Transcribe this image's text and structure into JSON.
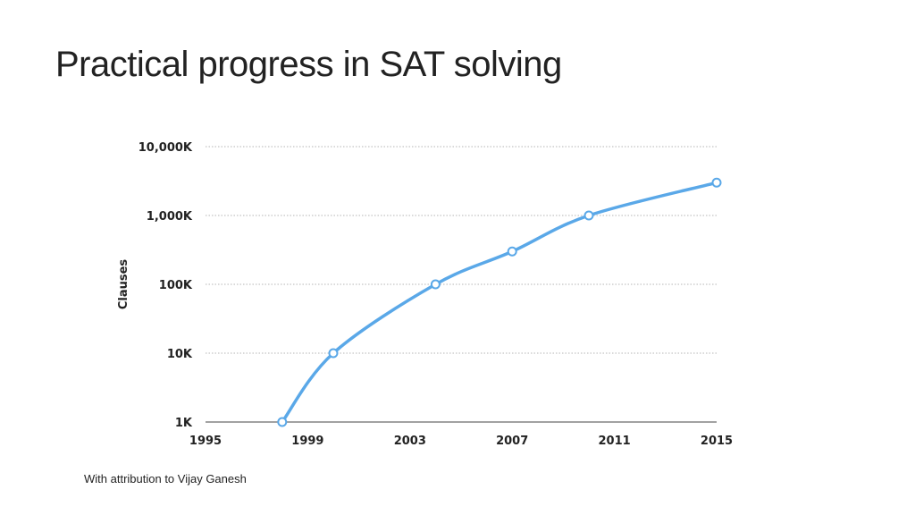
{
  "slide": {
    "title": "Practical progress in SAT solving",
    "footnote": "With attribution to Vijay Ganesh"
  },
  "chart_data": {
    "type": "line",
    "title": "",
    "xlabel": "",
    "ylabel": "Clauses",
    "yscale": "log",
    "xlim": [
      1995,
      2015
    ],
    "ylim": [
      1000,
      10000000
    ],
    "x_ticks": [
      1995,
      1999,
      2003,
      2007,
      2011,
      2015
    ],
    "y_ticks": [
      {
        "value": 1000,
        "label": "1K"
      },
      {
        "value": 10000,
        "label": "10K"
      },
      {
        "value": 100000,
        "label": "100K"
      },
      {
        "value": 1000000,
        "label": "1,000K"
      },
      {
        "value": 10000000,
        "label": "10,000K"
      }
    ],
    "grid": true,
    "series": [
      {
        "name": "Clauses",
        "color": "#5aa8e8",
        "x": [
          1998,
          2000,
          2004,
          2007,
          2010,
          2015
        ],
        "values": [
          1000,
          10000,
          100000,
          300000,
          1000000,
          3000000
        ]
      }
    ]
  }
}
